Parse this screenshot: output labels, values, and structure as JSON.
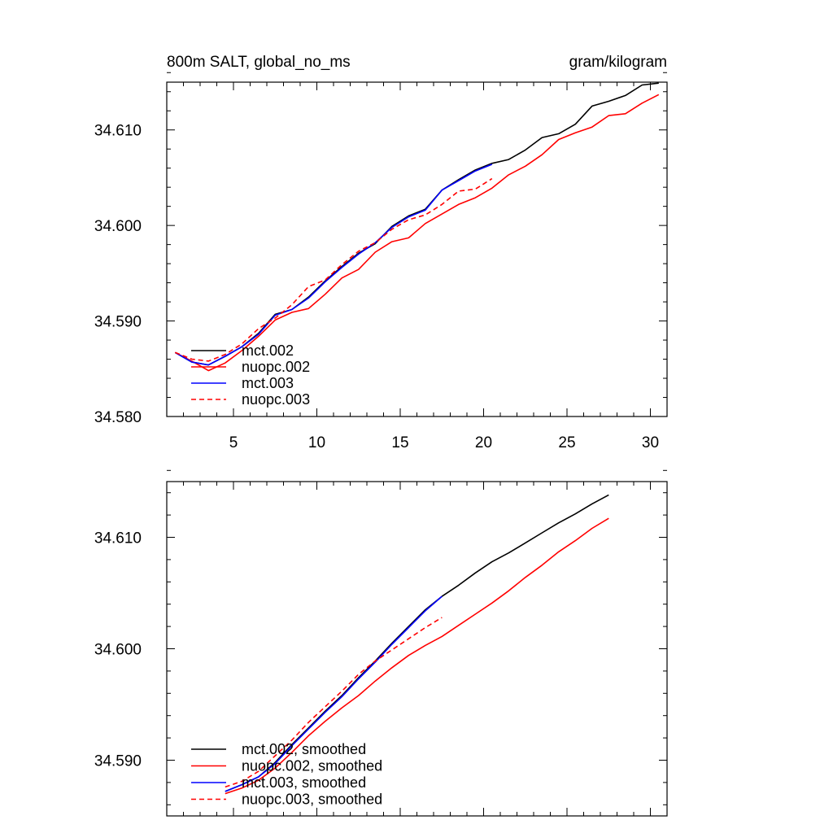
{
  "chart_data": [
    {
      "type": "line",
      "title_left": "800m SALT, global_no_ms",
      "title_right": "gram/kilogram",
      "xlim": [
        1.0,
        31.0
      ],
      "ylim": [
        34.58,
        34.615
      ],
      "x_ticks": [
        5,
        10,
        15,
        20,
        25,
        30
      ],
      "x_tick_labels": [
        "5",
        "10",
        "15",
        "20",
        "25",
        "30"
      ],
      "y_ticks": [
        34.58,
        34.59,
        34.6,
        34.61
      ],
      "y_tick_labels": [
        "34.580",
        "34.590",
        "34.600",
        "34.610"
      ],
      "legend_position": "lower-left",
      "series": [
        {
          "name": "mct.002",
          "color": "#000000",
          "dash": "solid",
          "x": [
            1.5,
            2.5,
            3.5,
            4.5,
            5.5,
            6.5,
            7.5,
            8.5,
            9.5,
            10.5,
            11.5,
            12.5,
            13.5,
            14.5,
            15.5,
            16.5,
            17.5,
            18.5,
            19.5,
            20.5,
            21.5,
            22.5,
            23.5,
            24.5,
            25.5,
            26.5,
            27.5,
            28.5,
            29.5,
            30.5
          ],
          "values": [
            34.5867,
            34.5857,
            34.5854,
            34.5863,
            34.5873,
            34.5887,
            34.5907,
            34.5912,
            34.5925,
            34.5942,
            34.5957,
            34.5971,
            34.5981,
            34.5999,
            34.601,
            34.6017,
            34.6037,
            34.6048,
            34.6058,
            34.6065,
            34.6069,
            34.6079,
            34.6092,
            34.6096,
            34.6106,
            34.6125,
            34.613,
            34.6136,
            34.6147,
            34.6149
          ]
        },
        {
          "name": "nuopc.002",
          "color": "#ff0000",
          "dash": "solid",
          "x": [
            1.5,
            2.5,
            3.5,
            4.5,
            5.5,
            6.5,
            7.5,
            8.5,
            9.5,
            10.5,
            11.5,
            12.5,
            13.5,
            14.5,
            15.5,
            16.5,
            17.5,
            18.5,
            19.5,
            20.5,
            21.5,
            22.5,
            23.5,
            24.5,
            25.5,
            26.5,
            27.5,
            28.5,
            29.5,
            30.5
          ],
          "values": [
            34.5867,
            34.5858,
            34.5848,
            34.5856,
            34.5869,
            34.5884,
            34.5901,
            34.5909,
            34.5913,
            34.5928,
            34.5945,
            34.5954,
            34.5972,
            34.5983,
            34.5987,
            34.6002,
            34.6012,
            34.6022,
            34.6029,
            34.6039,
            34.6053,
            34.6062,
            34.6074,
            34.609,
            34.6097,
            34.6103,
            34.6115,
            34.6117,
            34.6128,
            34.6137
          ]
        },
        {
          "name": "mct.003",
          "color": "#0000ff",
          "dash": "solid",
          "x": [
            1.5,
            2.5,
            3.5,
            4.5,
            5.5,
            6.5,
            7.5,
            8.5,
            9.5,
            10.5,
            11.5,
            12.5,
            13.5,
            14.5,
            15.5,
            16.5,
            17.5,
            18.5,
            19.5,
            20.5
          ],
          "values": [
            34.5867,
            34.5857,
            34.5854,
            34.5863,
            34.5873,
            34.5886,
            34.5906,
            34.5912,
            34.5924,
            34.5941,
            34.5956,
            34.597,
            34.5982,
            34.5998,
            34.6009,
            34.6016,
            34.6037,
            34.6047,
            34.6057,
            34.6064
          ]
        },
        {
          "name": "nuopc.003",
          "color": "#ff0000",
          "dash": "dashed",
          "x": [
            1.5,
            2.5,
            3.5,
            4.5,
            5.5,
            6.5,
            7.5,
            8.5,
            9.5,
            10.5,
            11.5,
            12.5,
            13.5,
            14.5,
            15.5,
            16.5,
            17.5,
            18.5,
            19.5,
            20.5
          ],
          "values": [
            34.5867,
            34.586,
            34.5858,
            34.5865,
            34.5876,
            34.5892,
            34.5903,
            34.5917,
            34.5936,
            34.5943,
            34.5959,
            34.5973,
            34.5982,
            34.5996,
            34.6006,
            34.6011,
            34.6022,
            34.6036,
            34.6038,
            34.6049
          ]
        }
      ]
    },
    {
      "type": "line",
      "xlim": [
        1.0,
        31.0
      ],
      "ylim": [
        34.585,
        34.615
      ],
      "x_ticks": [
        5,
        10,
        15,
        20,
        25,
        30
      ],
      "y_ticks": [
        34.59,
        34.6,
        34.61
      ],
      "y_tick_labels": [
        "34.590",
        "34.600",
        "34.610"
      ],
      "legend_position": "lower-left",
      "series": [
        {
          "name": "mct.002, smoothed",
          "color": "#000000",
          "dash": "solid",
          "x": [
            4.5,
            5.5,
            6.5,
            7.5,
            8.5,
            9.5,
            10.5,
            11.5,
            12.5,
            13.5,
            14.5,
            15.5,
            16.5,
            17.5,
            18.5,
            19.5,
            20.5,
            21.5,
            22.5,
            23.5,
            24.5,
            25.5,
            26.5,
            27.5
          ],
          "values": [
            34.5872,
            34.5878,
            34.5885,
            34.5898,
            34.5914,
            34.5929,
            34.5944,
            34.5958,
            34.5974,
            34.5989,
            34.6005,
            34.602,
            34.6035,
            34.6047,
            34.6057,
            34.6068,
            34.6078,
            34.6086,
            34.6095,
            34.6104,
            34.6113,
            34.6121,
            34.613,
            34.6138
          ]
        },
        {
          "name": "nuopc.002, smoothed",
          "color": "#ff0000",
          "dash": "solid",
          "x": [
            4.5,
            5.5,
            6.5,
            7.5,
            8.5,
            9.5,
            10.5,
            11.5,
            12.5,
            13.5,
            14.5,
            15.5,
            16.5,
            17.5,
            18.5,
            19.5,
            20.5,
            21.5,
            22.5,
            23.5,
            24.5,
            25.5,
            26.5,
            27.5
          ],
          "values": [
            34.587,
            34.5875,
            34.5882,
            34.5893,
            34.5907,
            34.5922,
            34.5935,
            34.5947,
            34.5958,
            34.5971,
            34.5983,
            34.5994,
            34.6003,
            34.6011,
            34.6021,
            34.6031,
            34.6041,
            34.6052,
            34.6064,
            34.6075,
            34.6087,
            34.6097,
            34.6108,
            34.6117
          ]
        },
        {
          "name": "mct.003, smoothed",
          "color": "#0000ff",
          "dash": "solid",
          "x": [
            4.5,
            5.5,
            6.5,
            7.5,
            8.5,
            9.5,
            10.5,
            11.5,
            12.5,
            13.5,
            14.5,
            15.5,
            16.5,
            17.5
          ],
          "values": [
            34.5872,
            34.5878,
            34.5885,
            34.5897,
            34.5913,
            34.5928,
            34.5943,
            34.5957,
            34.5973,
            34.5988,
            34.6004,
            34.6019,
            34.6034,
            34.6047
          ]
        },
        {
          "name": "nuopc.003, smoothed",
          "color": "#ff0000",
          "dash": "dashed",
          "x": [
            4.5,
            5.5,
            6.5,
            7.5,
            8.5,
            9.5,
            10.5,
            11.5,
            12.5,
            13.5,
            14.5,
            15.5,
            16.5,
            17.5
          ],
          "values": [
            34.5876,
            34.5881,
            34.589,
            34.5904,
            34.5918,
            34.5934,
            34.5948,
            34.5962,
            34.5977,
            34.5989,
            34.5999,
            34.6009,
            34.6019,
            34.6028
          ]
        }
      ]
    }
  ]
}
